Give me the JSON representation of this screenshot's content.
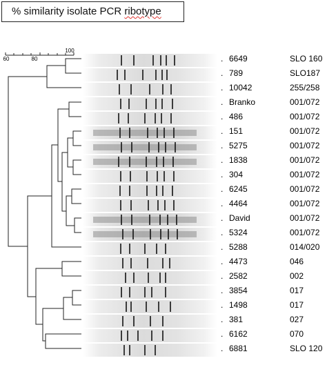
{
  "header": {
    "title_prefix": "% similarity isolate PCR ",
    "title_word": "ribotype"
  },
  "scale": {
    "ticks": [
      "60",
      "80",
      "100"
    ]
  },
  "rows": [
    {
      "isolate": "6649",
      "ribotype": "SLO 160"
    },
    {
      "isolate": "789",
      "ribotype": "SLO187"
    },
    {
      "isolate": "10042",
      "ribotype": "255/258"
    },
    {
      "isolate": "Branko",
      "ribotype": "001/072"
    },
    {
      "isolate": "486",
      "ribotype": "001/072"
    },
    {
      "isolate": "151",
      "ribotype": "001/072"
    },
    {
      "isolate": "5275",
      "ribotype": "001/072"
    },
    {
      "isolate": "1838",
      "ribotype": "001/072"
    },
    {
      "isolate": "304",
      "ribotype": "001/072"
    },
    {
      "isolate": "6245",
      "ribotype": "001/072"
    },
    {
      "isolate": "4464",
      "ribotype": "001/072"
    },
    {
      "isolate": "David",
      "ribotype": "001/072"
    },
    {
      "isolate": "5324",
      "ribotype": "001/072"
    },
    {
      "isolate": "5288",
      "ribotype": "014/020"
    },
    {
      "isolate": "4473",
      "ribotype": "046"
    },
    {
      "isolate": "2582",
      "ribotype": "002"
    },
    {
      "isolate": "3854",
      "ribotype": "017"
    },
    {
      "isolate": "1498",
      "ribotype": "017"
    },
    {
      "isolate": "381",
      "ribotype": "027"
    },
    {
      "isolate": "6162",
      "ribotype": "070"
    },
    {
      "isolate": "6881",
      "ribotype": "SLO 120"
    }
  ],
  "colors": {
    "line": "#222222",
    "band": "#111111",
    "lane_light": "#ececec",
    "lane_dark": "#9a9a9a",
    "underline": "#e0342f"
  }
}
